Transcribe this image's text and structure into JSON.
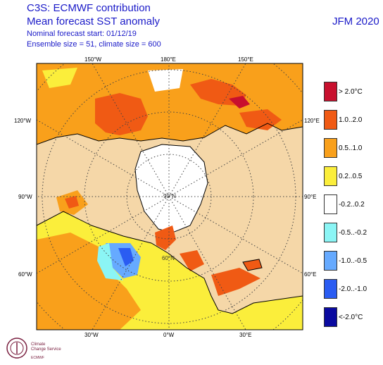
{
  "header": {
    "line1": "C3S: ECMWF contribution",
    "line2": "Mean forecast SST anomaly",
    "line3": "Nominal forecast start: 01/12/19",
    "line4": "Ensemble size = 51, climate size = 600",
    "period": "JFM 2020"
  },
  "map": {
    "projection": "north-polar-stereographic",
    "land_color": "#f5d7a8",
    "ocean_neutral_color": "#ffffff",
    "longitude_labels_top": [
      "150°W",
      "180°E",
      "150°E"
    ],
    "longitude_labels_bottom": [
      "30°W",
      "0°W",
      "30°E"
    ],
    "left_labels": [
      "120°W",
      "90°W",
      "60°W"
    ],
    "right_labels": [
      "120°E",
      "90°E",
      "60°E"
    ],
    "inner_labels": [
      "90°N",
      "60°N"
    ]
  },
  "legend": {
    "items": [
      {
        "label": "> 2.0°C",
        "color": "#c8102e"
      },
      {
        "label": "1.0..2.0",
        "color": "#f05a14"
      },
      {
        "label": "0.5..1.0",
        "color": "#f9a01b"
      },
      {
        "label": "0.2..0.5",
        "color": "#fbee3b"
      },
      {
        "label": "-0.2..0.2",
        "color": "#ffffff"
      },
      {
        "label": "-0.5..-0.2",
        "color": "#8bf5f5"
      },
      {
        "label": "-1.0..-0.5",
        "color": "#66aaff"
      },
      {
        "label": "-2.0..-1.0",
        "color": "#2a5cf2"
      },
      {
        "label": "<-2.0°C",
        "color": "#0a0aa0"
      }
    ]
  },
  "logo": {
    "line1": "Climate",
    "line2": "Change Service",
    "line3": "ECMWF"
  }
}
